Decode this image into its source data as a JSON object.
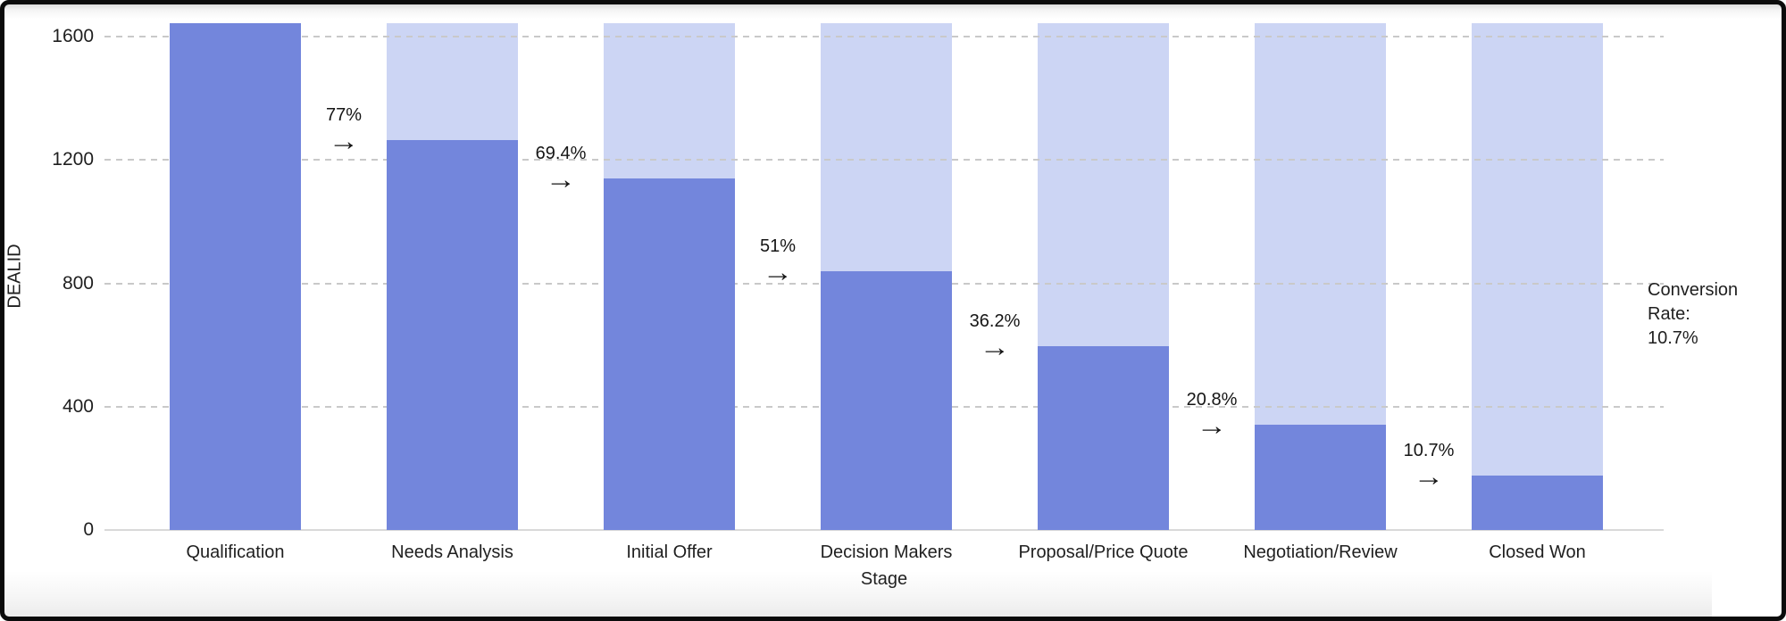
{
  "chart_data": {
    "type": "bar",
    "subtype": "funnel",
    "title": "",
    "xlabel": "Stage",
    "ylabel": "DEALID",
    "categories": [
      "Qualification",
      "Needs Analysis",
      "Initial Offer",
      "Decision Makers",
      "Proposal/Price Quote",
      "Negotiation/Review",
      "Closed Won"
    ],
    "values": [
      1644,
      1266,
      1141,
      838,
      595,
      342,
      176
    ],
    "funnel_max": 1644,
    "ylim": [
      0,
      1644
    ],
    "yticks": [
      0,
      400,
      800,
      1200,
      1600
    ],
    "grid": "dashed-horizontal",
    "legend_position": "none",
    "stage_conversion_labels": [
      "77%",
      "69.4%",
      "51%",
      "36.2%",
      "20.8%",
      "10.7%"
    ],
    "arrow_glyph": "→",
    "annotation": {
      "line1": "Conversion Rate:",
      "line2": "10.7%"
    },
    "colors": {
      "bar": "#7386DC",
      "bar_background": "#CCD5F4",
      "gridline": "#C9C9C9",
      "axis_line": "#D9D9D9",
      "text": "#1F1F1F"
    }
  }
}
